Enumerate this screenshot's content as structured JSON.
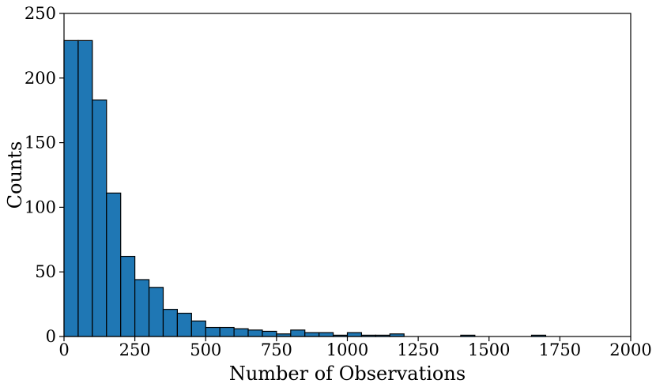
{
  "chart_data": {
    "type": "bar",
    "histogram": true,
    "xlabel": "Number of Observations",
    "ylabel": "Counts",
    "xlim": [
      0,
      2000
    ],
    "ylim": [
      0,
      250
    ],
    "xticks": [
      0,
      250,
      500,
      750,
      1000,
      1250,
      1500,
      1750,
      2000
    ],
    "yticks": [
      0,
      50,
      100,
      150,
      200,
      250
    ],
    "bin_width": 50,
    "bin_starts": [
      0,
      50,
      100,
      150,
      200,
      250,
      300,
      350,
      400,
      450,
      500,
      550,
      600,
      650,
      700,
      750,
      800,
      850,
      900,
      950,
      1000,
      1050,
      1100,
      1150,
      1200,
      1250,
      1300,
      1350,
      1400,
      1450,
      1500,
      1550,
      1600,
      1650,
      1700,
      1750,
      1800,
      1850,
      1900
    ],
    "values": [
      229,
      229,
      183,
      111,
      62,
      44,
      38,
      21,
      18,
      12,
      7,
      7,
      6,
      5,
      4,
      2,
      5,
      3,
      3,
      1,
      3,
      1,
      1,
      2,
      0,
      0,
      0,
      0,
      1,
      0,
      0,
      0,
      0,
      1,
      0,
      0,
      0,
      0,
      0
    ],
    "bar_color": "#1f77b4",
    "edge_color": "#000000",
    "grid": false,
    "legend": "none"
  }
}
